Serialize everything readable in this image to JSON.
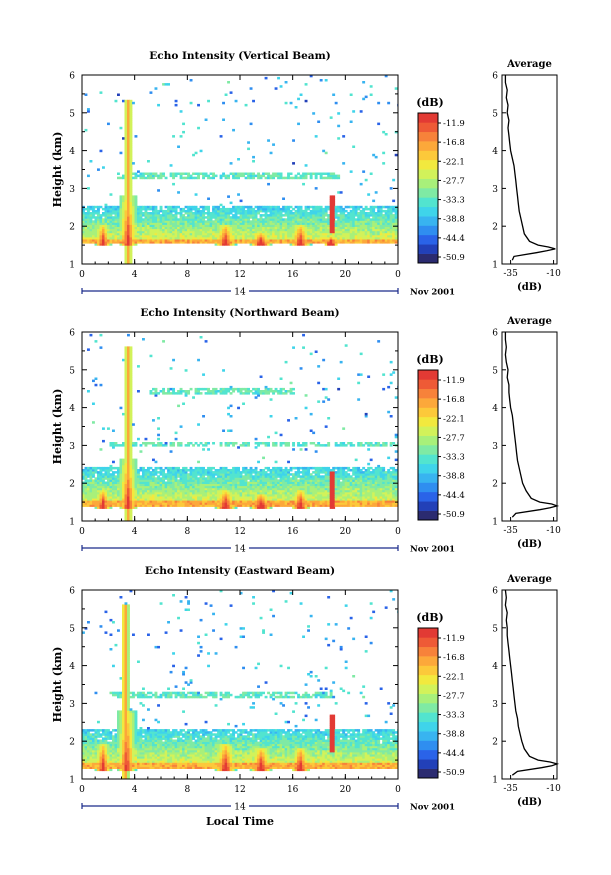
{
  "figure": {
    "xlabel": "Local Time"
  },
  "chart_data": [
    {
      "type": "heatmap",
      "title": "Echo Intensity (Vertical Beam)",
      "xlabel": "",
      "ylabel": "Height (km)",
      "xlim": [
        0,
        24
      ],
      "ylim": [
        1,
        6
      ],
      "xticks": [
        "0",
        "4",
        "8",
        "12",
        "16",
        "20",
        "0"
      ],
      "yticks": [
        "1",
        "2",
        "3",
        "4",
        "5",
        "6"
      ],
      "day_label": "14",
      "date_label": "Nov 2001",
      "colorbar": {
        "label": "(dB)",
        "ticks": [
          "-11.9",
          "-16.8",
          "-22.1",
          "-27.7",
          "-33.3",
          "-38.8",
          "-44.4",
          "-50.9"
        ]
      },
      "base_height_km": 1.6,
      "top_height_km": 2.5,
      "cells": [
        {
          "t": 1.5,
          "h": 2.0,
          "width_h": 0.6
        },
        {
          "t": 3.4,
          "h": 2.8,
          "width_h": 0.7
        },
        {
          "t": 10.8,
          "h": 2.0,
          "width_h": 0.8
        },
        {
          "t": 13.5,
          "h": 1.8,
          "width_h": 0.8
        },
        {
          "t": 16.5,
          "h": 2.0,
          "width_h": 0.8
        },
        {
          "t": 18.8,
          "h": 1.7,
          "width_h": 0.5
        }
      ],
      "column": {
        "t": 3.4,
        "top": 5.3
      },
      "strong_spot": {
        "t": 18.9,
        "h": 2.5
      },
      "layers": [
        {
          "h": 3.3,
          "t0": 2.5,
          "t1": 19.5
        }
      ],
      "profile": {
        "title": "Average",
        "xlabel": "(dB)",
        "xticks": [
          "-35",
          "-10"
        ],
        "xlim": [
          -40,
          -8
        ],
        "heights": [
          1.1,
          1.2,
          1.3,
          1.35,
          1.4,
          1.45,
          1.5,
          1.6,
          1.8,
          2.0,
          2.2,
          2.4,
          2.6,
          2.8,
          3.0,
          3.2,
          3.4,
          3.6,
          3.8,
          4.0,
          4.2,
          4.4,
          4.6,
          4.8,
          5.0,
          5.2,
          5.4,
          5.6,
          5.8,
          6.0
        ],
        "values": [
          -34,
          -33,
          -20,
          -14,
          -9,
          -13,
          -19,
          -24,
          -27,
          -28,
          -29,
          -30,
          -30.5,
          -31,
          -31.5,
          -32,
          -32.5,
          -33,
          -34,
          -35,
          -35.5,
          -36,
          -36.5,
          -36,
          -37,
          -36.5,
          -37.5,
          -37,
          -38,
          -38
        ]
      }
    },
    {
      "type": "heatmap",
      "title": "Echo Intensity (Northward Beam)",
      "xlabel": "",
      "ylabel": "Height (km)",
      "xlim": [
        0,
        24
      ],
      "ylim": [
        1,
        6
      ],
      "xticks": [
        "0",
        "4",
        "8",
        "12",
        "16",
        "20",
        "0"
      ],
      "yticks": [
        "1",
        "2",
        "3",
        "4",
        "5",
        "6"
      ],
      "day_label": "14",
      "date_label": "Nov 2001",
      "colorbar": {
        "label": "(dB)",
        "ticks": [
          "-11.9",
          "-16.8",
          "-22.1",
          "-27.7",
          "-33.3",
          "-38.8",
          "-44.4",
          "-50.9"
        ]
      },
      "base_height_km": 1.45,
      "top_height_km": 2.4,
      "cells": [
        {
          "t": 1.5,
          "h": 1.8,
          "width_h": 0.6
        },
        {
          "t": 3.4,
          "h": 2.6,
          "width_h": 0.7
        },
        {
          "t": 10.8,
          "h": 1.8,
          "width_h": 0.8
        },
        {
          "t": 13.5,
          "h": 1.7,
          "width_h": 0.8
        },
        {
          "t": 16.5,
          "h": 1.8,
          "width_h": 0.7
        }
      ],
      "column": {
        "t": 3.4,
        "top": 5.6
      },
      "strong_spot": {
        "t": 18.9,
        "h": 2.0
      },
      "layers": [
        {
          "h": 3.0,
          "t0": 2.0,
          "t1": 24
        },
        {
          "h": 4.4,
          "t0": 5,
          "t1": 16
        }
      ],
      "profile": {
        "title": "Average",
        "xlabel": "(dB)",
        "xticks": [
          "-35",
          "-10"
        ],
        "xlim": [
          -40,
          -8
        ],
        "heights": [
          1.1,
          1.2,
          1.3,
          1.35,
          1.4,
          1.45,
          1.5,
          1.6,
          1.8,
          2.0,
          2.2,
          2.4,
          2.6,
          2.8,
          3.0,
          3.2,
          3.4,
          3.6,
          3.8,
          4.0,
          4.2,
          4.4,
          4.6,
          4.8,
          5.0,
          5.2,
          5.4,
          5.6,
          5.8,
          6.0
        ],
        "values": [
          -34,
          -32,
          -18,
          -12,
          -8,
          -11,
          -18,
          -23,
          -26,
          -28,
          -29,
          -30,
          -31,
          -31.5,
          -32,
          -32.5,
          -33,
          -33.5,
          -34,
          -35,
          -35.5,
          -36,
          -36,
          -37,
          -36.5,
          -37.5,
          -38,
          -37.5,
          -38,
          -38
        ]
      }
    },
    {
      "type": "heatmap",
      "title": "Echo Intensity (Eastward Beam)",
      "xlabel": "",
      "ylabel": "Height (km)",
      "xlim": [
        0,
        24
      ],
      "ylim": [
        1,
        6
      ],
      "xticks": [
        "0",
        "4",
        "8",
        "12",
        "16",
        "20",
        "0"
      ],
      "yticks": [
        "1",
        "2",
        "3",
        "4",
        "5",
        "6"
      ],
      "day_label": "14",
      "date_label": "Nov 2001",
      "colorbar": {
        "label": "(dB)",
        "ticks": [
          "-11.9",
          "-16.8",
          "-22.1",
          "-27.7",
          "-33.3",
          "-38.8",
          "-44.4",
          "-50.9"
        ]
      },
      "base_height_km": 1.35,
      "top_height_km": 2.3,
      "cells": [
        {
          "t": 1.5,
          "h": 1.9,
          "width_h": 0.6
        },
        {
          "t": 3.3,
          "h": 2.8,
          "width_h": 0.7
        },
        {
          "t": 10.8,
          "h": 1.9,
          "width_h": 0.8
        },
        {
          "t": 13.5,
          "h": 1.8,
          "width_h": 0.8
        },
        {
          "t": 16.5,
          "h": 1.8,
          "width_h": 0.7
        }
      ],
      "column": {
        "t": 3.2,
        "top": 5.6
      },
      "strong_spot": {
        "t": 18.9,
        "h": 2.4
      },
      "layers": [
        {
          "h": 3.2,
          "t0": 2.0,
          "t1": 19
        }
      ],
      "profile": {
        "title": "Average",
        "xlabel": "(dB)",
        "xticks": [
          "-35",
          "-10"
        ],
        "xlim": [
          -40,
          -8
        ],
        "heights": [
          1.1,
          1.2,
          1.3,
          1.35,
          1.4,
          1.45,
          1.5,
          1.6,
          1.8,
          2.0,
          2.2,
          2.4,
          2.6,
          2.8,
          3.0,
          3.2,
          3.4,
          3.6,
          3.8,
          4.0,
          4.2,
          4.4,
          4.6,
          4.8,
          5.0,
          5.2,
          5.4,
          5.6,
          5.8,
          6.0
        ],
        "values": [
          -34,
          -31,
          -17,
          -11,
          -8,
          -12,
          -19,
          -24,
          -27,
          -28.5,
          -29.5,
          -30.5,
          -31,
          -32,
          -32.5,
          -33,
          -33.5,
          -34,
          -34.5,
          -35,
          -35.5,
          -36,
          -36.5,
          -37,
          -37,
          -37.5,
          -37,
          -38,
          -37.5,
          -38
        ]
      }
    }
  ]
}
